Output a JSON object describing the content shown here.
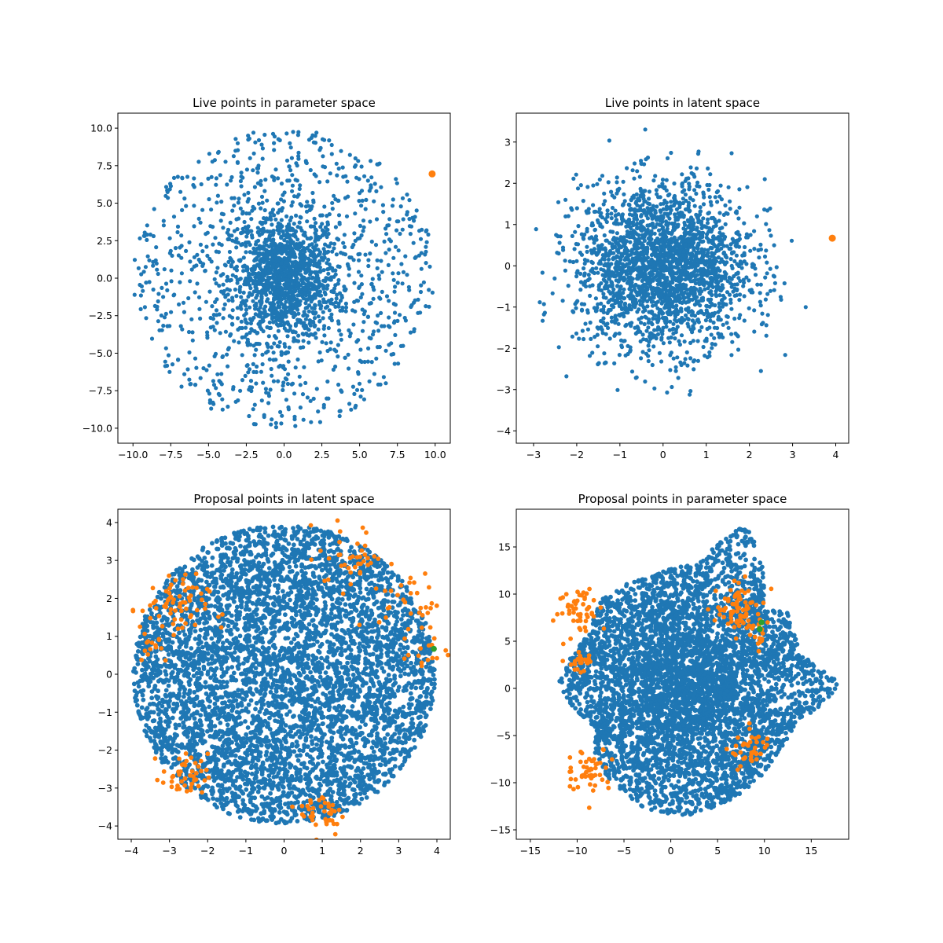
{
  "colors": {
    "live": "#1f77b4",
    "proposal": "#1f77b4",
    "accepted": "#ff7f0e",
    "special": "#2ca02c",
    "latest": "#ff7f0e"
  },
  "chart_data": [
    {
      "type": "scatter",
      "title": "Live points in parameter space",
      "xlim": [
        -11.0,
        11.0
      ],
      "ylim": [
        -11.0,
        11.0
      ],
      "xticks": [
        -10,
        -7.5,
        -5,
        -2.5,
        0,
        2.5,
        5,
        7.5,
        10
      ],
      "xticklabels": [
        "−10.0",
        "−7.5",
        "−5.0",
        "−2.5",
        "0.0",
        "2.5",
        "5.0",
        "7.5",
        "10.0"
      ],
      "yticks": [
        -10,
        -7.5,
        -5,
        -2.5,
        0,
        2.5,
        5,
        7.5,
        10
      ],
      "yticklabels": [
        "−10.0",
        "−7.5",
        "−5.0",
        "−2.5",
        "0.0",
        "2.5",
        "5.0",
        "7.5",
        "10.0"
      ],
      "series": [
        {
          "role": "live",
          "color": "#1f77b4",
          "marker_size": 2.6,
          "distribution": "gaussian_core_plus_disk",
          "count": 2200,
          "core_sigma": 1.8,
          "halo_radius": 10.0,
          "halo_fraction": 0.45
        },
        {
          "role": "latest",
          "color": "#ff7f0e",
          "marker_size": 4.5,
          "points": [
            [
              9.8,
              6.95
            ]
          ]
        }
      ]
    },
    {
      "type": "scatter",
      "title": "Live points in latent space",
      "xlim": [
        -3.4,
        4.3
      ],
      "ylim": [
        -4.3,
        3.7
      ],
      "xticks": [
        -3,
        -2,
        -1,
        0,
        1,
        2,
        3,
        4
      ],
      "xticklabels": [
        "−3",
        "−2",
        "−1",
        "0",
        "1",
        "2",
        "3",
        "4"
      ],
      "yticks": [
        -4,
        -3,
        -2,
        -1,
        0,
        1,
        2,
        3
      ],
      "yticklabels": [
        "−4",
        "−3",
        "−2",
        "−1",
        "0",
        "1",
        "2",
        "3"
      ],
      "series": [
        {
          "role": "live",
          "color": "#1f77b4",
          "marker_size": 2.6,
          "distribution": "gaussian",
          "count": 2400,
          "sigma": 1.0,
          "clip": 3.6
        },
        {
          "role": "latest",
          "color": "#ff7f0e",
          "marker_size": 4.5,
          "points": [
            [
              3.92,
              0.67
            ]
          ]
        }
      ]
    },
    {
      "type": "scatter",
      "title": "Proposal points in latent space",
      "xlim": [
        -4.35,
        4.35
      ],
      "ylim": [
        -4.35,
        4.35
      ],
      "xticks": [
        -4,
        -3,
        -2,
        -1,
        0,
        1,
        2,
        3,
        4
      ],
      "xticklabels": [
        "−4",
        "−3",
        "−2",
        "−1",
        "0",
        "1",
        "2",
        "3",
        "4"
      ],
      "yticks": [
        -4,
        -3,
        -2,
        -1,
        0,
        1,
        2,
        3,
        4
      ],
      "yticklabels": [
        "−4",
        "−3",
        "−2",
        "−1",
        "0",
        "1",
        "2",
        "3",
        "4"
      ],
      "series": [
        {
          "role": "proposal",
          "color": "#1f77b4",
          "marker_size": 2.9,
          "distribution": "uniform_disk",
          "count": 5200,
          "radius": 3.95
        },
        {
          "role": "accepted",
          "color": "#ff7f0e",
          "marker_size": 2.9,
          "clusters": [
            {
              "cx": -2.9,
              "cy": 1.7,
              "spread": 0.45,
              "count": 70
            },
            {
              "cx": -2.6,
              "cy": -2.7,
              "spread": 0.3,
              "count": 45
            },
            {
              "cx": 1.8,
              "cy": 3.1,
              "spread": 0.45,
              "count": 40
            },
            {
              "cx": 3.3,
              "cy": 1.9,
              "spread": 0.4,
              "count": 30
            },
            {
              "cx": 3.7,
              "cy": 0.6,
              "spread": 0.3,
              "count": 15
            },
            {
              "cx": 1.0,
              "cy": -3.65,
              "spread": 0.3,
              "count": 40
            },
            {
              "cx": -3.45,
              "cy": 0.8,
              "spread": 0.25,
              "count": 12
            }
          ]
        },
        {
          "role": "special",
          "color": "#2ca02c",
          "marker_size": 3.8,
          "points": [
            [
              3.92,
              0.67
            ]
          ]
        }
      ]
    },
    {
      "type": "scatter",
      "title": "Proposal points in parameter space",
      "xlim": [
        -16.5,
        19.0
      ],
      "ylim": [
        -16.0,
        19.0
      ],
      "xticks": [
        -15,
        -10,
        -5,
        0,
        5,
        10,
        15
      ],
      "xticklabels": [
        "−15",
        "−10",
        "−5",
        "0",
        "5",
        "10",
        "15"
      ],
      "yticks": [
        -15,
        -10,
        -5,
        0,
        5,
        10,
        15
      ],
      "yticklabels": [
        "−15",
        "−10",
        "−5",
        "0",
        "5",
        "10",
        "15"
      ],
      "series": [
        {
          "role": "proposal",
          "color": "#1f77b4",
          "marker_size": 2.9,
          "distribution": "warped_disk",
          "count": 5200,
          "inner_scale": 5.6,
          "outer_scale": 14.5
        },
        {
          "role": "accepted",
          "color": "#ff7f0e",
          "marker_size": 2.9,
          "clusters": [
            {
              "cx": -9.5,
              "cy": 8.5,
              "spread": 1.2,
              "count": 50
            },
            {
              "cx": -9.8,
              "cy": 3.0,
              "spread": 0.8,
              "count": 25
            },
            {
              "cx": -8.8,
              "cy": -8.6,
              "spread": 1.2,
              "count": 50
            },
            {
              "cx": 7.5,
              "cy": 8.3,
              "spread": 1.3,
              "count": 80
            },
            {
              "cx": 8.6,
              "cy": -6.6,
              "spread": 1.1,
              "count": 40
            },
            {
              "cx": 9.3,
              "cy": 5.2,
              "spread": 0.6,
              "count": 12
            }
          ]
        },
        {
          "role": "special",
          "color": "#2ca02c",
          "marker_size": 3.8,
          "points": [
            [
              9.7,
              7.0
            ],
            [
              9.5,
              6.3
            ]
          ]
        }
      ]
    }
  ]
}
